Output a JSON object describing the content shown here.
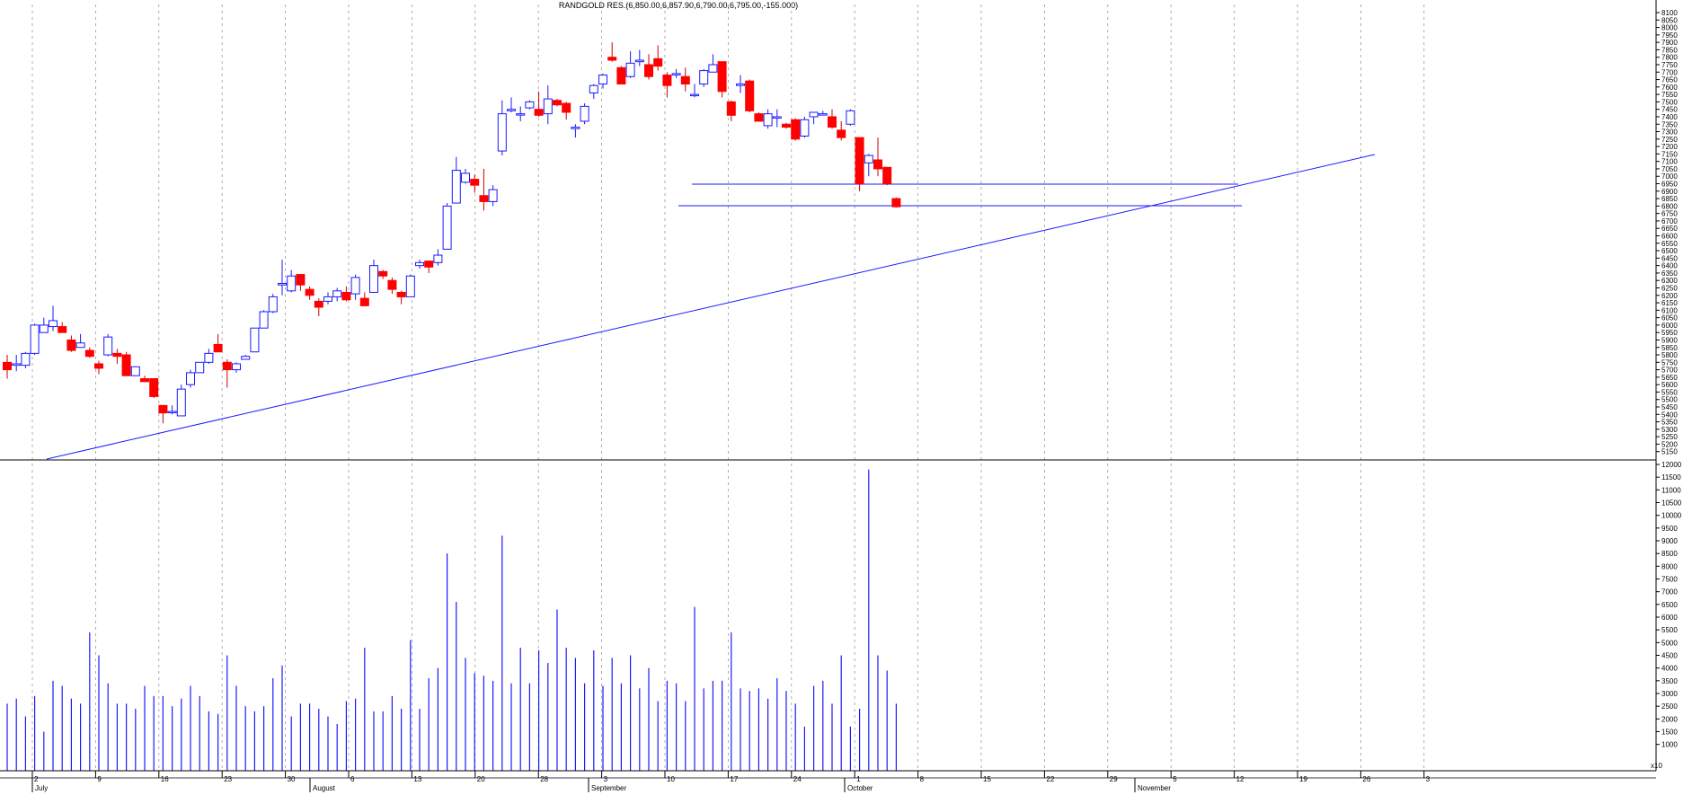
{
  "chart_data": {
    "type": "candlestick",
    "title": "RANDGOLD RES.(6,850.00,6,857.90,6,790.00,6,795.00,-155.000)",
    "x_labels": [
      "2",
      "9",
      "16",
      "23",
      "30",
      "6",
      "13",
      "20",
      "28",
      "3",
      "10",
      "17",
      "24",
      "1",
      "8",
      "15",
      "22",
      "29",
      "5",
      "12",
      "19",
      "26",
      "3"
    ],
    "months": [
      "July",
      "August",
      "September",
      "October",
      "November"
    ],
    "volume_unit_label": "x10",
    "price": {
      "ylim": [
        5100,
        8100
      ],
      "ticks": [
        5150,
        5200,
        5250,
        5300,
        5350,
        5400,
        5450,
        5500,
        5550,
        5600,
        5650,
        5700,
        5750,
        5800,
        5850,
        5900,
        5950,
        6000,
        6050,
        6100,
        6150,
        6200,
        6250,
        6300,
        6350,
        6400,
        6450,
        6500,
        6550,
        6600,
        6650,
        6700,
        6750,
        6800,
        6850,
        6900,
        6950,
        7000,
        7050,
        7100,
        7150,
        7200,
        7250,
        7300,
        7350,
        7400,
        7450,
        7500,
        7550,
        7600,
        7650,
        7700,
        7750,
        7800,
        7850,
        7900,
        7950,
        8000,
        8050,
        8100
      ]
    },
    "volume": {
      "ylim": [
        0,
        12000
      ],
      "ticks": [
        1000,
        1500,
        2000,
        2500,
        3000,
        3500,
        4000,
        4500,
        5000,
        5500,
        6000,
        6500,
        7000,
        7500,
        8000,
        8500,
        9000,
        9500,
        10000,
        10500,
        11000,
        11500,
        12000
      ]
    },
    "candles": [
      {
        "o": 5750,
        "h": 5800,
        "l": 5640,
        "c": 5700
      },
      {
        "o": 5730,
        "h": 5800,
        "l": 5690,
        "c": 5740
      },
      {
        "o": 5730,
        "h": 5820,
        "l": 5710,
        "c": 5810
      },
      {
        "o": 5810,
        "h": 6010,
        "l": 5800,
        "c": 6000
      },
      {
        "o": 5950,
        "h": 6050,
        "l": 5950,
        "c": 6000
      },
      {
        "o": 5990,
        "h": 6130,
        "l": 5960,
        "c": 6030
      },
      {
        "o": 5990,
        "h": 6020,
        "l": 5950,
        "c": 5950
      },
      {
        "o": 5900,
        "h": 5930,
        "l": 5820,
        "c": 5830
      },
      {
        "o": 5850,
        "h": 5940,
        "l": 5850,
        "c": 5880
      },
      {
        "o": 5830,
        "h": 5850,
        "l": 5780,
        "c": 5790
      },
      {
        "o": 5740,
        "h": 5760,
        "l": 5670,
        "c": 5710
      },
      {
        "o": 5800,
        "h": 5940,
        "l": 5790,
        "c": 5920
      },
      {
        "o": 5810,
        "h": 5840,
        "l": 5740,
        "c": 5790
      },
      {
        "o": 5800,
        "h": 5820,
        "l": 5660,
        "c": 5660
      },
      {
        "o": 5660,
        "h": 5720,
        "l": 5660,
        "c": 5720
      },
      {
        "o": 5640,
        "h": 5660,
        "l": 5620,
        "c": 5620
      },
      {
        "o": 5640,
        "h": 5640,
        "l": 5510,
        "c": 5520
      },
      {
        "o": 5460,
        "h": 5460,
        "l": 5340,
        "c": 5410
      },
      {
        "o": 5420,
        "h": 5460,
        "l": 5400,
        "c": 5420
      },
      {
        "o": 5390,
        "h": 5600,
        "l": 5390,
        "c": 5570
      },
      {
        "o": 5600,
        "h": 5700,
        "l": 5580,
        "c": 5680
      },
      {
        "o": 5680,
        "h": 5750,
        "l": 5680,
        "c": 5750
      },
      {
        "o": 5750,
        "h": 5840,
        "l": 5740,
        "c": 5810
      },
      {
        "o": 5870,
        "h": 5940,
        "l": 5820,
        "c": 5820
      },
      {
        "o": 5750,
        "h": 5770,
        "l": 5580,
        "c": 5700
      },
      {
        "o": 5700,
        "h": 5750,
        "l": 5680,
        "c": 5740
      },
      {
        "o": 5770,
        "h": 5800,
        "l": 5770,
        "c": 5790
      },
      {
        "o": 5820,
        "h": 5980,
        "l": 5820,
        "c": 5980
      },
      {
        "o": 5980,
        "h": 6100,
        "l": 5980,
        "c": 6090
      },
      {
        "o": 6090,
        "h": 6210,
        "l": 6080,
        "c": 6190
      },
      {
        "o": 6270,
        "h": 6440,
        "l": 6200,
        "c": 6280
      },
      {
        "o": 6230,
        "h": 6370,
        "l": 6220,
        "c": 6330
      },
      {
        "o": 6340,
        "h": 6340,
        "l": 6230,
        "c": 6270
      },
      {
        "o": 6240,
        "h": 6260,
        "l": 6170,
        "c": 6200
      },
      {
        "o": 6160,
        "h": 6180,
        "l": 6060,
        "c": 6120
      },
      {
        "o": 6160,
        "h": 6220,
        "l": 6140,
        "c": 6190
      },
      {
        "o": 6190,
        "h": 6250,
        "l": 6160,
        "c": 6230
      },
      {
        "o": 6220,
        "h": 6260,
        "l": 6160,
        "c": 6170
      },
      {
        "o": 6210,
        "h": 6340,
        "l": 6170,
        "c": 6320
      },
      {
        "o": 6180,
        "h": 6220,
        "l": 6140,
        "c": 6130
      },
      {
        "o": 6220,
        "h": 6440,
        "l": 6220,
        "c": 6400
      },
      {
        "o": 6360,
        "h": 6370,
        "l": 6310,
        "c": 6330
      },
      {
        "o": 6300,
        "h": 6320,
        "l": 6210,
        "c": 6240
      },
      {
        "o": 6220,
        "h": 6230,
        "l": 6140,
        "c": 6190
      },
      {
        "o": 6190,
        "h": 6340,
        "l": 6190,
        "c": 6330
      },
      {
        "o": 6400,
        "h": 6440,
        "l": 6380,
        "c": 6420
      },
      {
        "o": 6430,
        "h": 6430,
        "l": 6350,
        "c": 6390
      },
      {
        "o": 6420,
        "h": 6510,
        "l": 6400,
        "c": 6470
      },
      {
        "o": 6510,
        "h": 6820,
        "l": 6510,
        "c": 6800
      },
      {
        "o": 6820,
        "h": 7130,
        "l": 6820,
        "c": 7040
      },
      {
        "o": 6960,
        "h": 7050,
        "l": 6950,
        "c": 7020
      },
      {
        "o": 6980,
        "h": 7010,
        "l": 6890,
        "c": 6940
      },
      {
        "o": 6870,
        "h": 7050,
        "l": 6770,
        "c": 6830
      },
      {
        "o": 6830,
        "h": 6940,
        "l": 6800,
        "c": 6910
      },
      {
        "o": 7170,
        "h": 7510,
        "l": 7140,
        "c": 7420
      },
      {
        "o": 7440,
        "h": 7530,
        "l": 7430,
        "c": 7450
      },
      {
        "o": 7420,
        "h": 7470,
        "l": 7370,
        "c": 7420
      },
      {
        "o": 7460,
        "h": 7510,
        "l": 7450,
        "c": 7500
      },
      {
        "o": 7450,
        "h": 7570,
        "l": 7400,
        "c": 7410
      },
      {
        "o": 7420,
        "h": 7610,
        "l": 7350,
        "c": 7520
      },
      {
        "o": 7510,
        "h": 7520,
        "l": 7470,
        "c": 7480
      },
      {
        "o": 7490,
        "h": 7500,
        "l": 7380,
        "c": 7430
      },
      {
        "o": 7320,
        "h": 7350,
        "l": 7260,
        "c": 7330
      },
      {
        "o": 7370,
        "h": 7490,
        "l": 7350,
        "c": 7470
      },
      {
        "o": 7560,
        "h": 7620,
        "l": 7520,
        "c": 7610
      },
      {
        "o": 7620,
        "h": 7690,
        "l": 7590,
        "c": 7680
      },
      {
        "o": 7800,
        "h": 7900,
        "l": 7770,
        "c": 7780
      },
      {
        "o": 7730,
        "h": 7740,
        "l": 7620,
        "c": 7620
      },
      {
        "o": 7670,
        "h": 7840,
        "l": 7660,
        "c": 7760
      },
      {
        "o": 7770,
        "h": 7850,
        "l": 7740,
        "c": 7780
      },
      {
        "o": 7750,
        "h": 7820,
        "l": 7650,
        "c": 7670
      },
      {
        "o": 7790,
        "h": 7880,
        "l": 7710,
        "c": 7740
      },
      {
        "o": 7680,
        "h": 7700,
        "l": 7530,
        "c": 7610
      },
      {
        "o": 7690,
        "h": 7720,
        "l": 7660,
        "c": 7690
      },
      {
        "o": 7670,
        "h": 7730,
        "l": 7570,
        "c": 7620
      },
      {
        "o": 7550,
        "h": 7620,
        "l": 7530,
        "c": 7550
      },
      {
        "o": 7620,
        "h": 7720,
        "l": 7600,
        "c": 7710
      },
      {
        "o": 7700,
        "h": 7820,
        "l": 7700,
        "c": 7750
      },
      {
        "o": 7770,
        "h": 7770,
        "l": 7530,
        "c": 7570
      },
      {
        "o": 7500,
        "h": 7510,
        "l": 7370,
        "c": 7410
      },
      {
        "o": 7610,
        "h": 7680,
        "l": 7560,
        "c": 7620
      },
      {
        "o": 7640,
        "h": 7650,
        "l": 7430,
        "c": 7440
      },
      {
        "o": 7420,
        "h": 7430,
        "l": 7370,
        "c": 7370
      },
      {
        "o": 7340,
        "h": 7450,
        "l": 7320,
        "c": 7420
      },
      {
        "o": 7400,
        "h": 7450,
        "l": 7330,
        "c": 7400
      },
      {
        "o": 7350,
        "h": 7360,
        "l": 7320,
        "c": 7330
      },
      {
        "o": 7380,
        "h": 7390,
        "l": 7240,
        "c": 7250
      },
      {
        "o": 7270,
        "h": 7400,
        "l": 7260,
        "c": 7380
      },
      {
        "o": 7400,
        "h": 7430,
        "l": 7350,
        "c": 7430
      },
      {
        "o": 7420,
        "h": 7440,
        "l": 7410,
        "c": 7420
      },
      {
        "o": 7400,
        "h": 7450,
        "l": 7320,
        "c": 7330
      },
      {
        "o": 7310,
        "h": 7370,
        "l": 7240,
        "c": 7260
      },
      {
        "o": 7350,
        "h": 7450,
        "l": 7340,
        "c": 7440
      },
      {
        "o": 7260,
        "h": 7260,
        "l": 6900,
        "c": 6950
      },
      {
        "o": 7090,
        "h": 7150,
        "l": 7000,
        "c": 7140
      },
      {
        "o": 7110,
        "h": 7260,
        "l": 7000,
        "c": 7050
      },
      {
        "o": 7060,
        "h": 7060,
        "l": 6940,
        "c": 6950
      },
      {
        "o": 6850,
        "h": 6858,
        "l": 6790,
        "c": 6795
      }
    ],
    "volumes": [
      2600,
      2800,
      2100,
      2900,
      1500,
      3500,
      3300,
      2800,
      2600,
      5400,
      4500,
      3400,
      2600,
      2600,
      2400,
      3300,
      2900,
      2900,
      2500,
      2800,
      3300,
      2900,
      2300,
      2200,
      4500,
      3300,
      2500,
      2300,
      2500,
      3600,
      4100,
      2100,
      2600,
      2600,
      2400,
      2100,
      1800,
      2700,
      2800,
      4800,
      2300,
      2300,
      2900,
      2400,
      5100,
      2400,
      3600,
      4000,
      8500,
      6600,
      4400,
      3800,
      3700,
      3500,
      9200,
      3400,
      4800,
      3400,
      4700,
      4200,
      6300,
      4800,
      4400,
      3400,
      4700,
      3300,
      4400,
      3400,
      4500,
      3200,
      4000,
      2700,
      3500,
      3400,
      2700,
      6400,
      3200,
      3500,
      3500,
      5400,
      3200,
      3100,
      3200,
      2800,
      3600,
      3100,
      2600,
      1700,
      3300,
      3500,
      2600,
      4500,
      1700,
      2400,
      11800,
      4500,
      3900,
      2600
    ]
  }
}
